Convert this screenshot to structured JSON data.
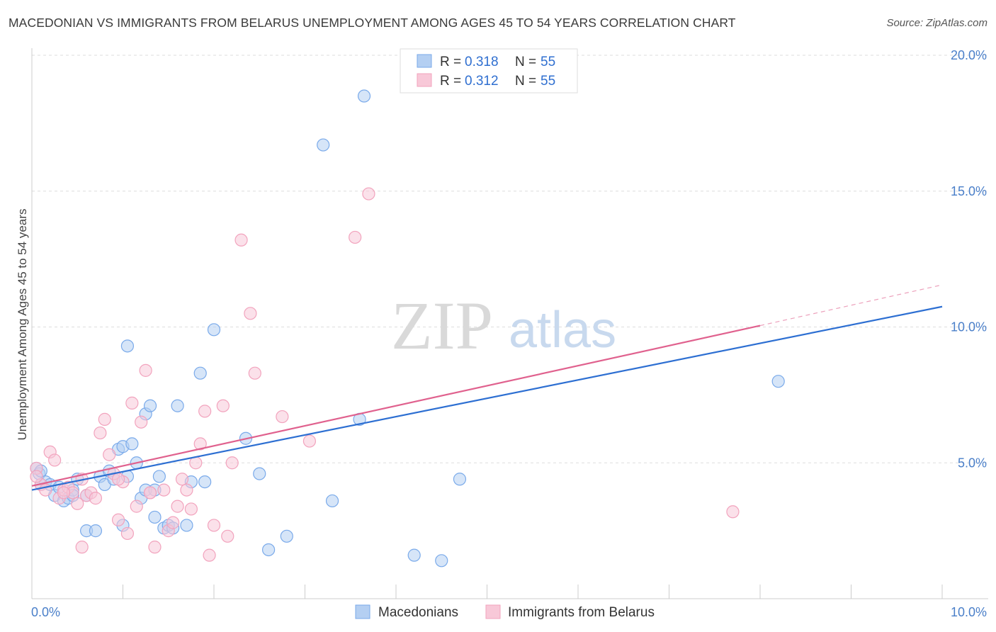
{
  "title": "MACEDONIAN VS IMMIGRANTS FROM BELARUS UNEMPLOYMENT AMONG AGES 45 TO 54 YEARS CORRELATION CHART",
  "source": "Source: ZipAtlas.com",
  "watermark": {
    "zip": "ZIP",
    "atlas": "atlas"
  },
  "legend": {
    "r_label": "R = ",
    "n_label": "N = ",
    "rows": [
      {
        "r": "0.318",
        "n": "55"
      },
      {
        "r": "0.312",
        "n": "55"
      }
    ]
  },
  "chart_data": {
    "type": "scatter",
    "ylabel": "Unemployment Among Ages 45 to 54 years",
    "xlim": [
      0,
      10
    ],
    "ylim": [
      0,
      20
    ],
    "x_tick_labels": [
      "0.0%",
      "10.0%"
    ],
    "y_tick_labels": [
      "5.0%",
      "10.0%",
      "15.0%",
      "20.0%"
    ],
    "y_ticks": [
      5,
      10,
      15,
      20
    ],
    "grid": true,
    "legend_position": "top-center",
    "series": [
      {
        "name": "Macedonians",
        "color": "#7aaaea",
        "fill": "#b4cff2",
        "line_color": "#2d6fd2",
        "trend": {
          "x0": 0,
          "y0": 4.0,
          "x1": 10,
          "y1": 10.75
        },
        "points": [
          [
            0.05,
            4.8
          ],
          [
            0.08,
            4.6
          ],
          [
            0.1,
            4.7
          ],
          [
            0.15,
            4.3
          ],
          [
            0.2,
            4.2
          ],
          [
            0.25,
            3.8
          ],
          [
            0.3,
            4.1
          ],
          [
            0.35,
            3.6
          ],
          [
            0.4,
            3.7
          ],
          [
            0.45,
            4.0
          ],
          [
            0.45,
            3.8
          ],
          [
            0.5,
            4.4
          ],
          [
            0.6,
            2.5
          ],
          [
            0.7,
            2.5
          ],
          [
            0.75,
            4.5
          ],
          [
            0.8,
            4.2
          ],
          [
            0.85,
            4.7
          ],
          [
            0.9,
            4.4
          ],
          [
            0.95,
            5.5
          ],
          [
            1.0,
            5.6
          ],
          [
            1.05,
            4.5
          ],
          [
            1.0,
            2.7
          ],
          [
            1.05,
            9.3
          ],
          [
            1.1,
            5.7
          ],
          [
            1.15,
            5.0
          ],
          [
            1.2,
            3.7
          ],
          [
            1.25,
            4.0
          ],
          [
            1.25,
            6.8
          ],
          [
            1.3,
            7.1
          ],
          [
            1.35,
            3.0
          ],
          [
            1.35,
            4.0
          ],
          [
            1.4,
            4.5
          ],
          [
            1.45,
            2.6
          ],
          [
            1.5,
            2.7
          ],
          [
            1.55,
            2.6
          ],
          [
            1.6,
            7.1
          ],
          [
            1.7,
            2.7
          ],
          [
            1.75,
            4.3
          ],
          [
            1.85,
            8.3
          ],
          [
            1.9,
            4.3
          ],
          [
            2.0,
            9.9
          ],
          [
            2.35,
            5.9
          ],
          [
            2.5,
            4.6
          ],
          [
            2.6,
            1.8
          ],
          [
            2.8,
            2.3
          ],
          [
            3.2,
            16.7
          ],
          [
            3.3,
            3.6
          ],
          [
            3.6,
            6.6
          ],
          [
            4.2,
            1.6
          ],
          [
            4.5,
            1.4
          ],
          [
            4.7,
            4.4
          ],
          [
            8.2,
            8.0
          ],
          [
            3.65,
            18.5
          ],
          [
            0.1,
            4.2
          ],
          [
            0.6,
            3.8
          ]
        ]
      },
      {
        "name": "Immigrants from Belarus",
        "color": "#f2a3bd",
        "fill": "#f8c8d8",
        "line_color": "#e0618e",
        "trend": {
          "x0": 0,
          "y0": 4.15,
          "x1": 8.0,
          "y1": 10.05
        },
        "trend_dash": {
          "x0": 8.0,
          "y0": 10.05,
          "x1": 10,
          "y1": 11.55
        },
        "points": [
          [
            0.05,
            4.8
          ],
          [
            0.1,
            4.2
          ],
          [
            0.15,
            4.0
          ],
          [
            0.2,
            5.4
          ],
          [
            0.25,
            5.1
          ],
          [
            0.3,
            3.7
          ],
          [
            0.35,
            4.0
          ],
          [
            0.4,
            4.1
          ],
          [
            0.45,
            3.9
          ],
          [
            0.5,
            3.5
          ],
          [
            0.55,
            4.4
          ],
          [
            0.6,
            3.8
          ],
          [
            0.65,
            3.9
          ],
          [
            0.7,
            3.7
          ],
          [
            0.75,
            6.1
          ],
          [
            0.8,
            6.6
          ],
          [
            0.85,
            5.3
          ],
          [
            0.9,
            4.6
          ],
          [
            0.95,
            2.9
          ],
          [
            1.0,
            4.3
          ],
          [
            1.05,
            2.4
          ],
          [
            1.1,
            7.2
          ],
          [
            1.15,
            3.4
          ],
          [
            1.2,
            6.5
          ],
          [
            1.25,
            8.4
          ],
          [
            1.3,
            3.9
          ],
          [
            1.35,
            1.9
          ],
          [
            1.45,
            4.0
          ],
          [
            1.5,
            2.5
          ],
          [
            1.55,
            2.8
          ],
          [
            1.6,
            3.4
          ],
          [
            1.65,
            4.4
          ],
          [
            1.7,
            4.0
          ],
          [
            1.75,
            3.3
          ],
          [
            1.8,
            5.0
          ],
          [
            1.85,
            5.7
          ],
          [
            1.9,
            6.9
          ],
          [
            1.95,
            1.6
          ],
          [
            2.0,
            2.7
          ],
          [
            2.1,
            7.1
          ],
          [
            2.15,
            2.3
          ],
          [
            2.2,
            5.0
          ],
          [
            2.3,
            13.2
          ],
          [
            2.4,
            10.5
          ],
          [
            2.45,
            8.3
          ],
          [
            2.75,
            6.7
          ],
          [
            3.05,
            5.8
          ],
          [
            3.55,
            13.3
          ],
          [
            3.7,
            14.9
          ],
          [
            7.7,
            3.2
          ],
          [
            0.55,
            1.9
          ],
          [
            1.3,
            3.9
          ],
          [
            0.95,
            4.4
          ],
          [
            0.35,
            3.9
          ],
          [
            0.05,
            4.5
          ]
        ]
      }
    ]
  }
}
